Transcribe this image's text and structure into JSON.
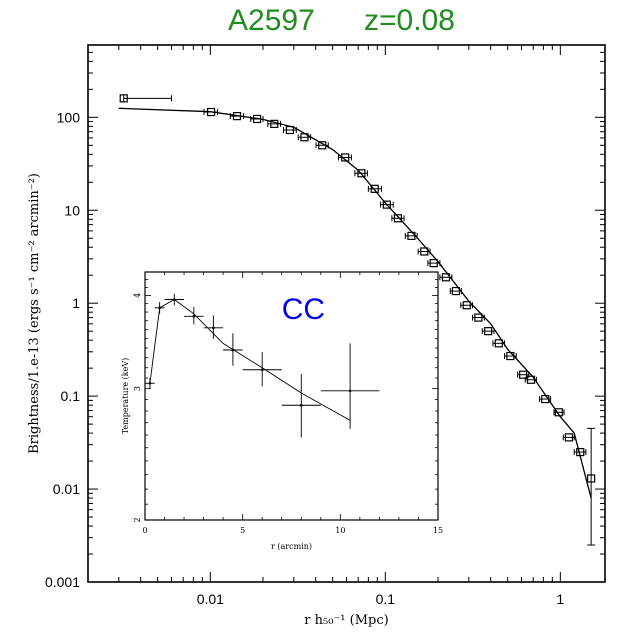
{
  "title": {
    "cluster": "A2597",
    "redshift": "z=0.08"
  },
  "chart_data": [
    {
      "type": "scatter",
      "ylabel": "Brightness/1.e-13 (ergs s⁻¹ cm⁻² arcmin⁻²)",
      "xlabel": "r h₅₀⁻¹ (Mpc)",
      "x_scale": "log",
      "y_scale": "log",
      "xlim": [
        0.002,
        1.8
      ],
      "ylim": [
        0.001,
        600
      ],
      "x_ticks": [
        0.01,
        0.1,
        1
      ],
      "x_tick_labels": [
        "0.01",
        "0.1",
        "1"
      ],
      "y_ticks": [
        0.001,
        0.01,
        0.1,
        1,
        10,
        100
      ],
      "y_tick_labels": [
        "0.001",
        "0.01",
        "0.1",
        "1",
        "10",
        "100"
      ],
      "grid": false,
      "points": [
        {
          "x": 0.0032,
          "y": 160,
          "xerr": [
            0.0032,
            0.006
          ]
        },
        {
          "x": 0.0101,
          "y": 114,
          "xerr": [
            0.0092,
            0.011
          ]
        },
        {
          "x": 0.0142,
          "y": 103,
          "xerr": [
            0.013,
            0.0155
          ]
        },
        {
          "x": 0.0185,
          "y": 96,
          "xerr": [
            0.017,
            0.02
          ]
        },
        {
          "x": 0.0232,
          "y": 85,
          "xerr": [
            0.0213,
            0.0252
          ]
        },
        {
          "x": 0.0285,
          "y": 73,
          "xerr": [
            0.0262,
            0.031
          ]
        },
        {
          "x": 0.0345,
          "y": 61,
          "xerr": [
            0.0318,
            0.0374
          ]
        },
        {
          "x": 0.0436,
          "y": 50,
          "xerr": [
            0.0402,
            0.0472
          ]
        },
        {
          "x": 0.059,
          "y": 37,
          "xerr": [
            0.054,
            0.064
          ]
        },
        {
          "x": 0.073,
          "y": 25,
          "xerr": [
            0.067,
            0.079
          ]
        },
        {
          "x": 0.087,
          "y": 17,
          "xerr": [
            0.08,
            0.095
          ]
        },
        {
          "x": 0.102,
          "y": 11.5,
          "xerr": [
            0.094,
            0.111
          ]
        },
        {
          "x": 0.118,
          "y": 8.2,
          "xerr": [
            0.109,
            0.128
          ]
        },
        {
          "x": 0.141,
          "y": 5.3,
          "xerr": [
            0.13,
            0.152
          ]
        },
        {
          "x": 0.167,
          "y": 3.6,
          "xerr": [
            0.154,
            0.18
          ]
        },
        {
          "x": 0.189,
          "y": 2.7,
          "xerr": [
            0.175,
            0.205
          ]
        },
        {
          "x": 0.222,
          "y": 1.9,
          "xerr": [
            0.205,
            0.24
          ]
        },
        {
          "x": 0.253,
          "y": 1.35,
          "xerr": [
            0.235,
            0.272
          ]
        },
        {
          "x": 0.292,
          "y": 0.95,
          "xerr": [
            0.27,
            0.315
          ]
        },
        {
          "x": 0.34,
          "y": 0.7,
          "xerr": [
            0.315,
            0.368
          ]
        },
        {
          "x": 0.387,
          "y": 0.5,
          "xerr": [
            0.358,
            0.418
          ]
        },
        {
          "x": 0.445,
          "y": 0.37,
          "xerr": [
            0.412,
            0.48
          ]
        },
        {
          "x": 0.518,
          "y": 0.27,
          "xerr": [
            0.48,
            0.56
          ]
        },
        {
          "x": 0.613,
          "y": 0.17,
          "xerr": [
            0.57,
            0.66
          ]
        },
        {
          "x": 0.68,
          "y": 0.15,
          "xerr": [
            0.63,
            0.73
          ]
        },
        {
          "x": 0.82,
          "y": 0.093,
          "xerr": [
            0.76,
            0.88
          ]
        },
        {
          "x": 0.98,
          "y": 0.067,
          "xerr": [
            0.92,
            1.05
          ]
        },
        {
          "x": 1.12,
          "y": 0.036,
          "xerr": [
            1.04,
            1.2
          ]
        },
        {
          "x": 1.3,
          "y": 0.025,
          "xerr": [
            1.2,
            1.4
          ]
        }
      ],
      "model_line": {
        "x": [
          0.003,
          0.01,
          0.02,
          0.03,
          0.05,
          0.07,
          0.1,
          0.15,
          0.2,
          0.3,
          0.4,
          0.5,
          0.7,
          1.0,
          1.2,
          1.5
        ],
        "y": [
          125,
          115,
          95,
          78,
          45,
          27,
          12,
          5.2,
          2.8,
          1.05,
          0.6,
          0.32,
          0.16,
          0.06,
          0.04,
          0.008
        ]
      },
      "large_error_point": {
        "x": 1.5,
        "y": 0.013,
        "yerr": [
          0.0025,
          0.045
        ]
      }
    },
    {
      "type": "scatter",
      "annotation": "CC",
      "xlabel": "r (arcmin)",
      "ylabel": "Temperature (keV)",
      "y_scale": "log",
      "xlim": [
        0,
        15
      ],
      "ylim": [
        2,
        4.3
      ],
      "x_ticks": [
        0,
        5,
        10,
        15
      ],
      "x_tick_labels": [
        "0",
        "5",
        "10",
        "15"
      ],
      "y_ticks": [
        2,
        3,
        4
      ],
      "y_tick_labels": [
        "2",
        "3",
        "4"
      ],
      "grid": false,
      "points": [
        {
          "x": 0.25,
          "y": 3.05,
          "xerr": [
            0,
            0.5
          ],
          "yerr": [
            3.0,
            3.1
          ]
        },
        {
          "x": 0.75,
          "y": 3.85,
          "xerr": [
            0.5,
            1.0
          ],
          "yerr": [
            3.78,
            3.92
          ]
        },
        {
          "x": 1.5,
          "y": 3.95,
          "xerr": [
            1.0,
            2.0
          ],
          "yerr": [
            3.88,
            4.02
          ]
        },
        {
          "x": 2.5,
          "y": 3.75,
          "xerr": [
            2.0,
            3.0
          ],
          "yerr": [
            3.66,
            3.86
          ]
        },
        {
          "x": 3.5,
          "y": 3.62,
          "xerr": [
            3.0,
            4.0
          ],
          "yerr": [
            3.5,
            3.76
          ]
        },
        {
          "x": 4.5,
          "y": 3.38,
          "xerr": [
            4.0,
            5.0
          ],
          "yerr": [
            3.22,
            3.56
          ]
        },
        {
          "x": 6.0,
          "y": 3.18,
          "xerr": [
            5.0,
            7.0
          ],
          "yerr": [
            3.02,
            3.36
          ]
        },
        {
          "x": 8.0,
          "y": 2.85,
          "xerr": [
            7.0,
            9.0
          ],
          "yerr": [
            2.58,
            3.14
          ]
        },
        {
          "x": 10.5,
          "y": 2.98,
          "xerr": [
            9.0,
            12.0
          ],
          "yerr": [
            2.65,
            3.45
          ]
        }
      ],
      "model_line": {
        "x": [
          0.25,
          0.75,
          1.5,
          2.5,
          4,
          6,
          8,
          10.5
        ],
        "y": [
          3.05,
          3.85,
          3.95,
          3.78,
          3.45,
          3.2,
          2.96,
          2.72
        ]
      }
    }
  ]
}
